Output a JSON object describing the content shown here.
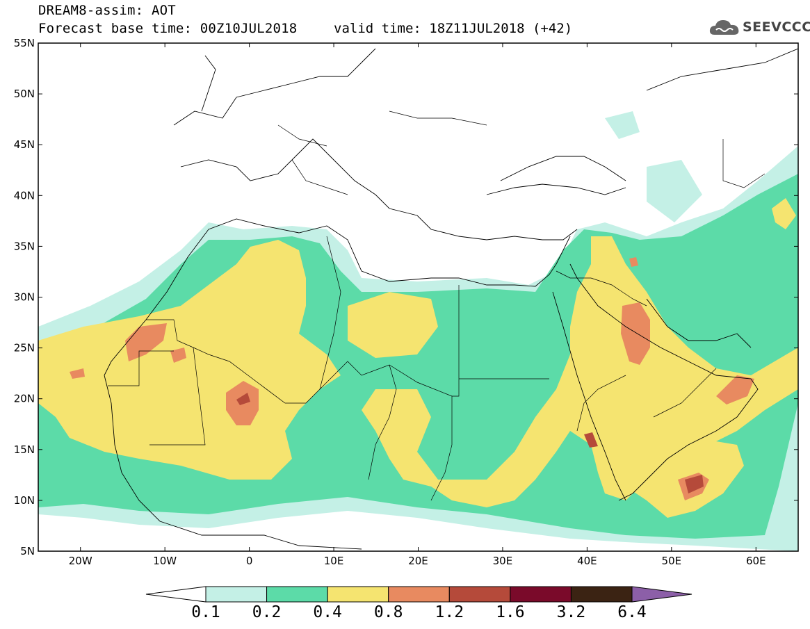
{
  "header": {
    "title": "DREAM8-assim: AOT",
    "base_time": "Forecast base time: 00Z10JUL2018",
    "valid_time": "valid time: 18Z11JUL2018 (+42)",
    "logo_text": "SEEVCCC",
    "logo_icon": "cloud-icon"
  },
  "map": {
    "lat_range": [
      5,
      55
    ],
    "lon_range": [
      -25,
      65
    ],
    "lat_labels": [
      "5N",
      "10N",
      "15N",
      "20N",
      "25N",
      "30N",
      "35N",
      "40N",
      "45N",
      "50N",
      "55N"
    ],
    "lon_labels": [
      "20W",
      "10W",
      "0",
      "10E",
      "20E",
      "30E",
      "40E",
      "50E",
      "60E"
    ]
  },
  "colorbar": {
    "labels": [
      "0.1",
      "0.2",
      "0.4",
      "0.8",
      "1.2",
      "1.6",
      "3.2",
      "6.4"
    ],
    "colors": [
      "#ffffff",
      "#c4f0e6",
      "#5cdba8",
      "#f5e470",
      "#e88a60",
      "#b54a3a",
      "#7a0a2a",
      "#3b2313",
      "#8c5fa8"
    ]
  }
}
